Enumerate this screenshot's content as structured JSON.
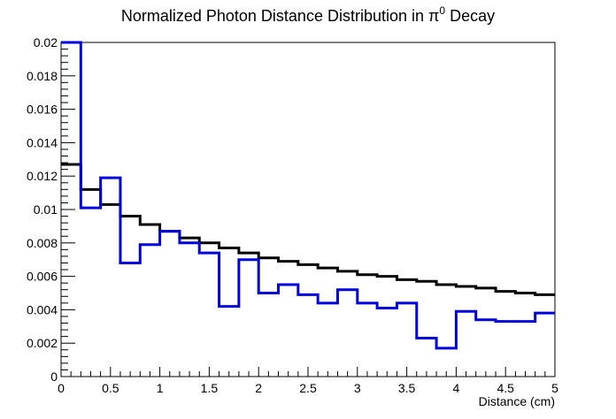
{
  "chart_data": {
    "type": "line",
    "title": "Normalized Photon Distance Distribution in π",
    "title_superscript": "0",
    "title_suffix": " Decay",
    "xlabel": "Distance (cm)",
    "ylabel": "",
    "xlim": [
      0,
      5
    ],
    "ylim": [
      0,
      0.02
    ],
    "x_ticks": [
      0,
      0.5,
      1,
      1.5,
      2,
      2.5,
      3,
      3.5,
      4,
      4.5,
      5
    ],
    "x_tick_labels": [
      "0",
      "0.5",
      "1",
      "1.5",
      "2",
      "2.5",
      "3",
      "3.5",
      "4",
      "4.5",
      "5"
    ],
    "y_ticks": [
      0,
      0.002,
      0.004,
      0.006,
      0.008,
      0.01,
      0.012,
      0.014,
      0.016,
      0.018,
      0.02
    ],
    "y_tick_labels": [
      "0",
      "0.002",
      "0.004",
      "0.006",
      "0.008",
      "0.01",
      "0.012",
      "0.014",
      "0.016",
      "0.018",
      "0.02"
    ],
    "grid": false,
    "legend": "none",
    "bin_edges": [
      0,
      0.2,
      0.4,
      0.6,
      0.8,
      1.0,
      1.2,
      1.4,
      1.6,
      1.8,
      2.0,
      2.2,
      2.4,
      2.6,
      2.8,
      3.0,
      3.2,
      3.4,
      3.6,
      3.8,
      4.0,
      4.2,
      4.4,
      4.6,
      4.8,
      5.0
    ],
    "series": [
      {
        "color": "#000000",
        "values": [
          0.0127,
          0.0112,
          0.0103,
          0.0096,
          0.0091,
          0.0087,
          0.0083,
          0.008,
          0.0077,
          0.0074,
          0.0071,
          0.0069,
          0.0067,
          0.0065,
          0.0063,
          0.0061,
          0.006,
          0.0058,
          0.0057,
          0.0055,
          0.0054,
          0.0053,
          0.0051,
          0.005,
          0.0049
        ]
      },
      {
        "color": "#0000dd",
        "values": [
          0.0205,
          0.0101,
          0.0119,
          0.0068,
          0.0079,
          0.0087,
          0.008,
          0.0074,
          0.0042,
          0.007,
          0.005,
          0.0055,
          0.0049,
          0.0044,
          0.0052,
          0.0044,
          0.0041,
          0.0044,
          0.0023,
          0.0017,
          0.0039,
          0.0034,
          0.0033,
          0.0033,
          0.0038
        ]
      }
    ]
  }
}
